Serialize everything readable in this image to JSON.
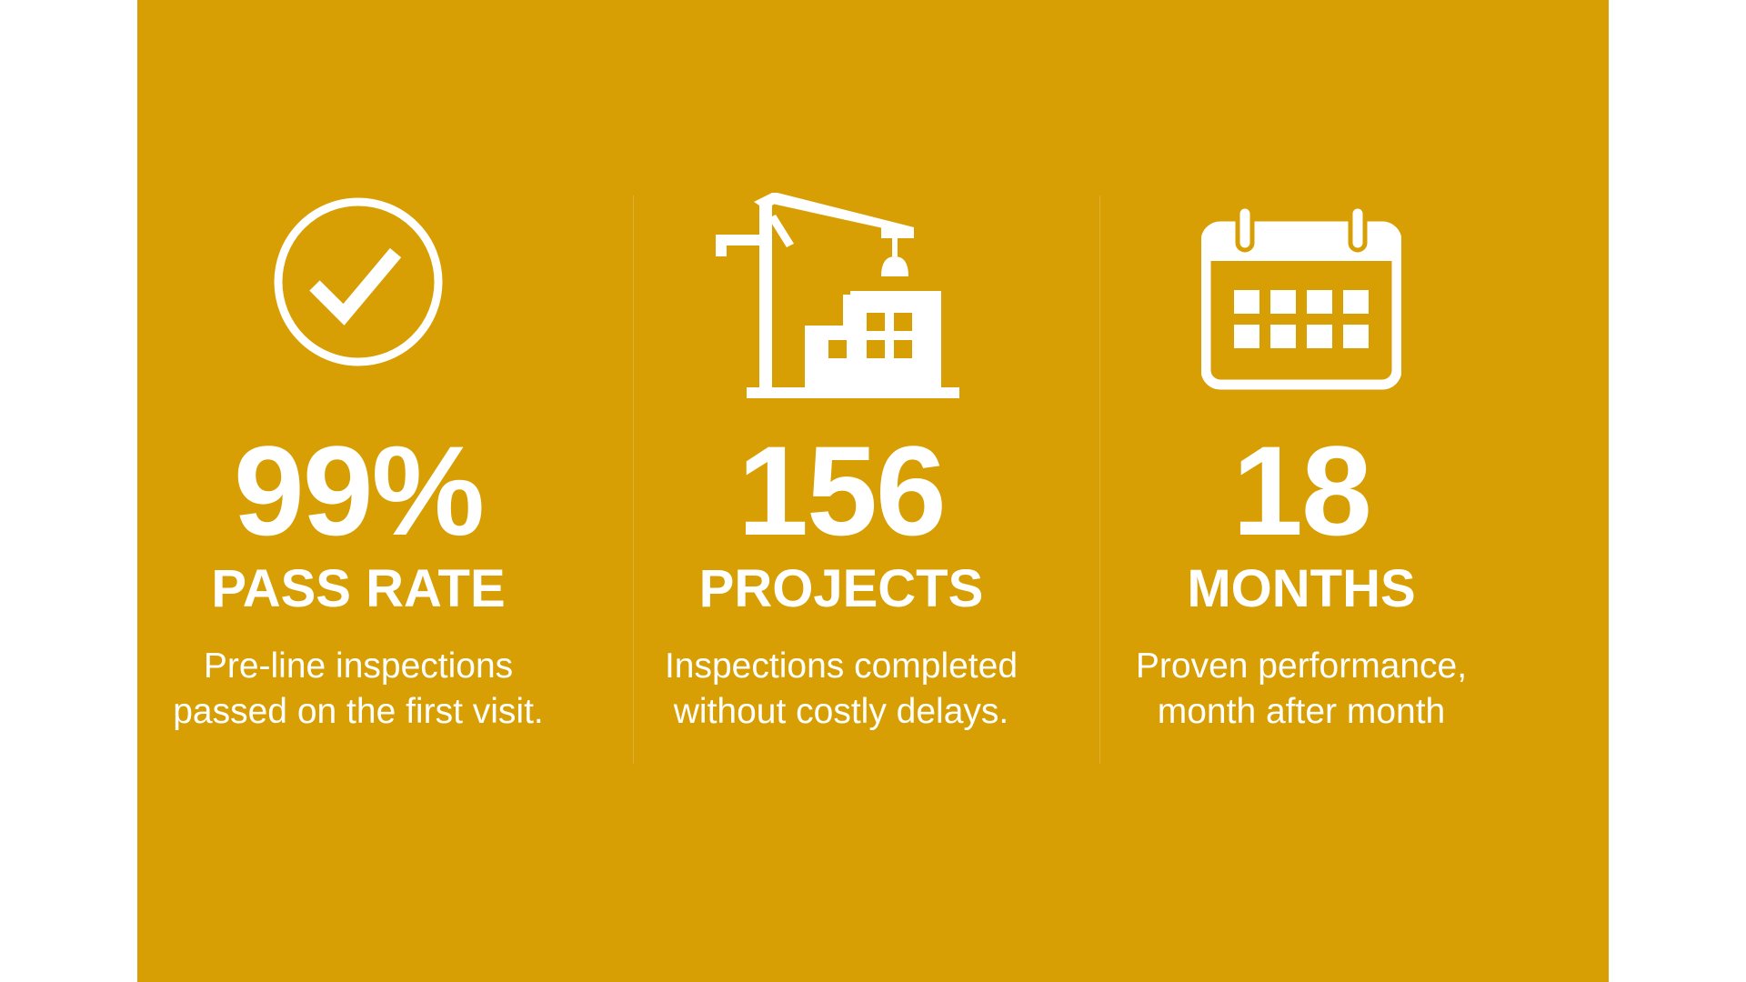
{
  "colors": {
    "panel": "#D89F04",
    "text": "#FFFFFF"
  },
  "stats": [
    {
      "icon": "check-circle-icon",
      "number": "99%",
      "label": "PASS RATE",
      "description": "Pre-line inspections\npassed on the first visit."
    },
    {
      "icon": "construction-crane-icon",
      "number": "156",
      "label": "PROJECTS",
      "description": "Inspections completed\nwithout costly delays."
    },
    {
      "icon": "calendar-icon",
      "number": "18",
      "label": "MONTHS",
      "description": "Proven performance,\nmonth after month"
    }
  ]
}
